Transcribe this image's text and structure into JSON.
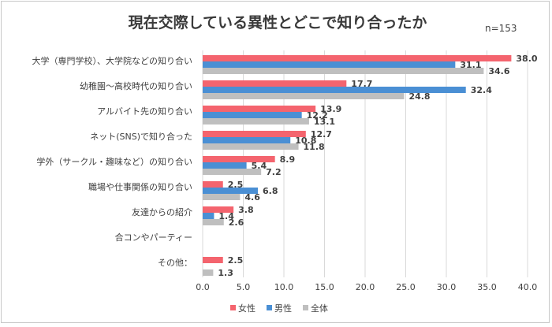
{
  "chart_data": {
    "type": "bar",
    "orientation": "horizontal",
    "title": "現在交際している異性とどこで知り合ったか",
    "note": "n=153",
    "categories": [
      "大学（専門学校）、大学院などの知り合い",
      "幼稚園～高校時代の知り合い",
      "アルバイト先の知り合い",
      "ネット(SNS)で知り合った",
      "学外（サークル・趣味など）の知り合い",
      "職場や仕事関係の知り合い",
      "友達からの紹介",
      "合コンやパーティー",
      "その他："
    ],
    "series": [
      {
        "name": "女性",
        "color": "#f4646e",
        "values": [
          38.0,
          17.7,
          13.9,
          12.7,
          8.9,
          2.5,
          3.8,
          null,
          2.5
        ],
        "labels": [
          "38.0",
          "17.7",
          "13.9",
          "12.7",
          "8.9",
          "2.5",
          "3.8",
          "",
          "2.5"
        ]
      },
      {
        "name": "男性",
        "color": "#4a8fd4",
        "values": [
          31.1,
          32.4,
          12.2,
          10.8,
          5.4,
          6.8,
          1.4,
          null,
          null
        ],
        "labels": [
          "31.1",
          "32.4",
          "12.2",
          "10.8",
          "5.4",
          "6.8",
          "1.4",
          "",
          ""
        ]
      },
      {
        "name": "全体",
        "color": "#bfbfbf",
        "values": [
          34.6,
          24.8,
          13.1,
          11.8,
          7.2,
          4.6,
          2.6,
          null,
          1.3
        ],
        "labels": [
          "34.6",
          "24.8",
          "13.1",
          "11.8",
          "7.2",
          "4.6",
          "2.6",
          "",
          "1.3"
        ]
      }
    ],
    "xlim": [
      0,
      40
    ],
    "xticks": [
      "0.0",
      "5.0",
      "10.0",
      "15.0",
      "20.0",
      "25.0",
      "30.0",
      "35.0",
      "40.0"
    ],
    "grid": true,
    "legend_position": "bottom"
  }
}
